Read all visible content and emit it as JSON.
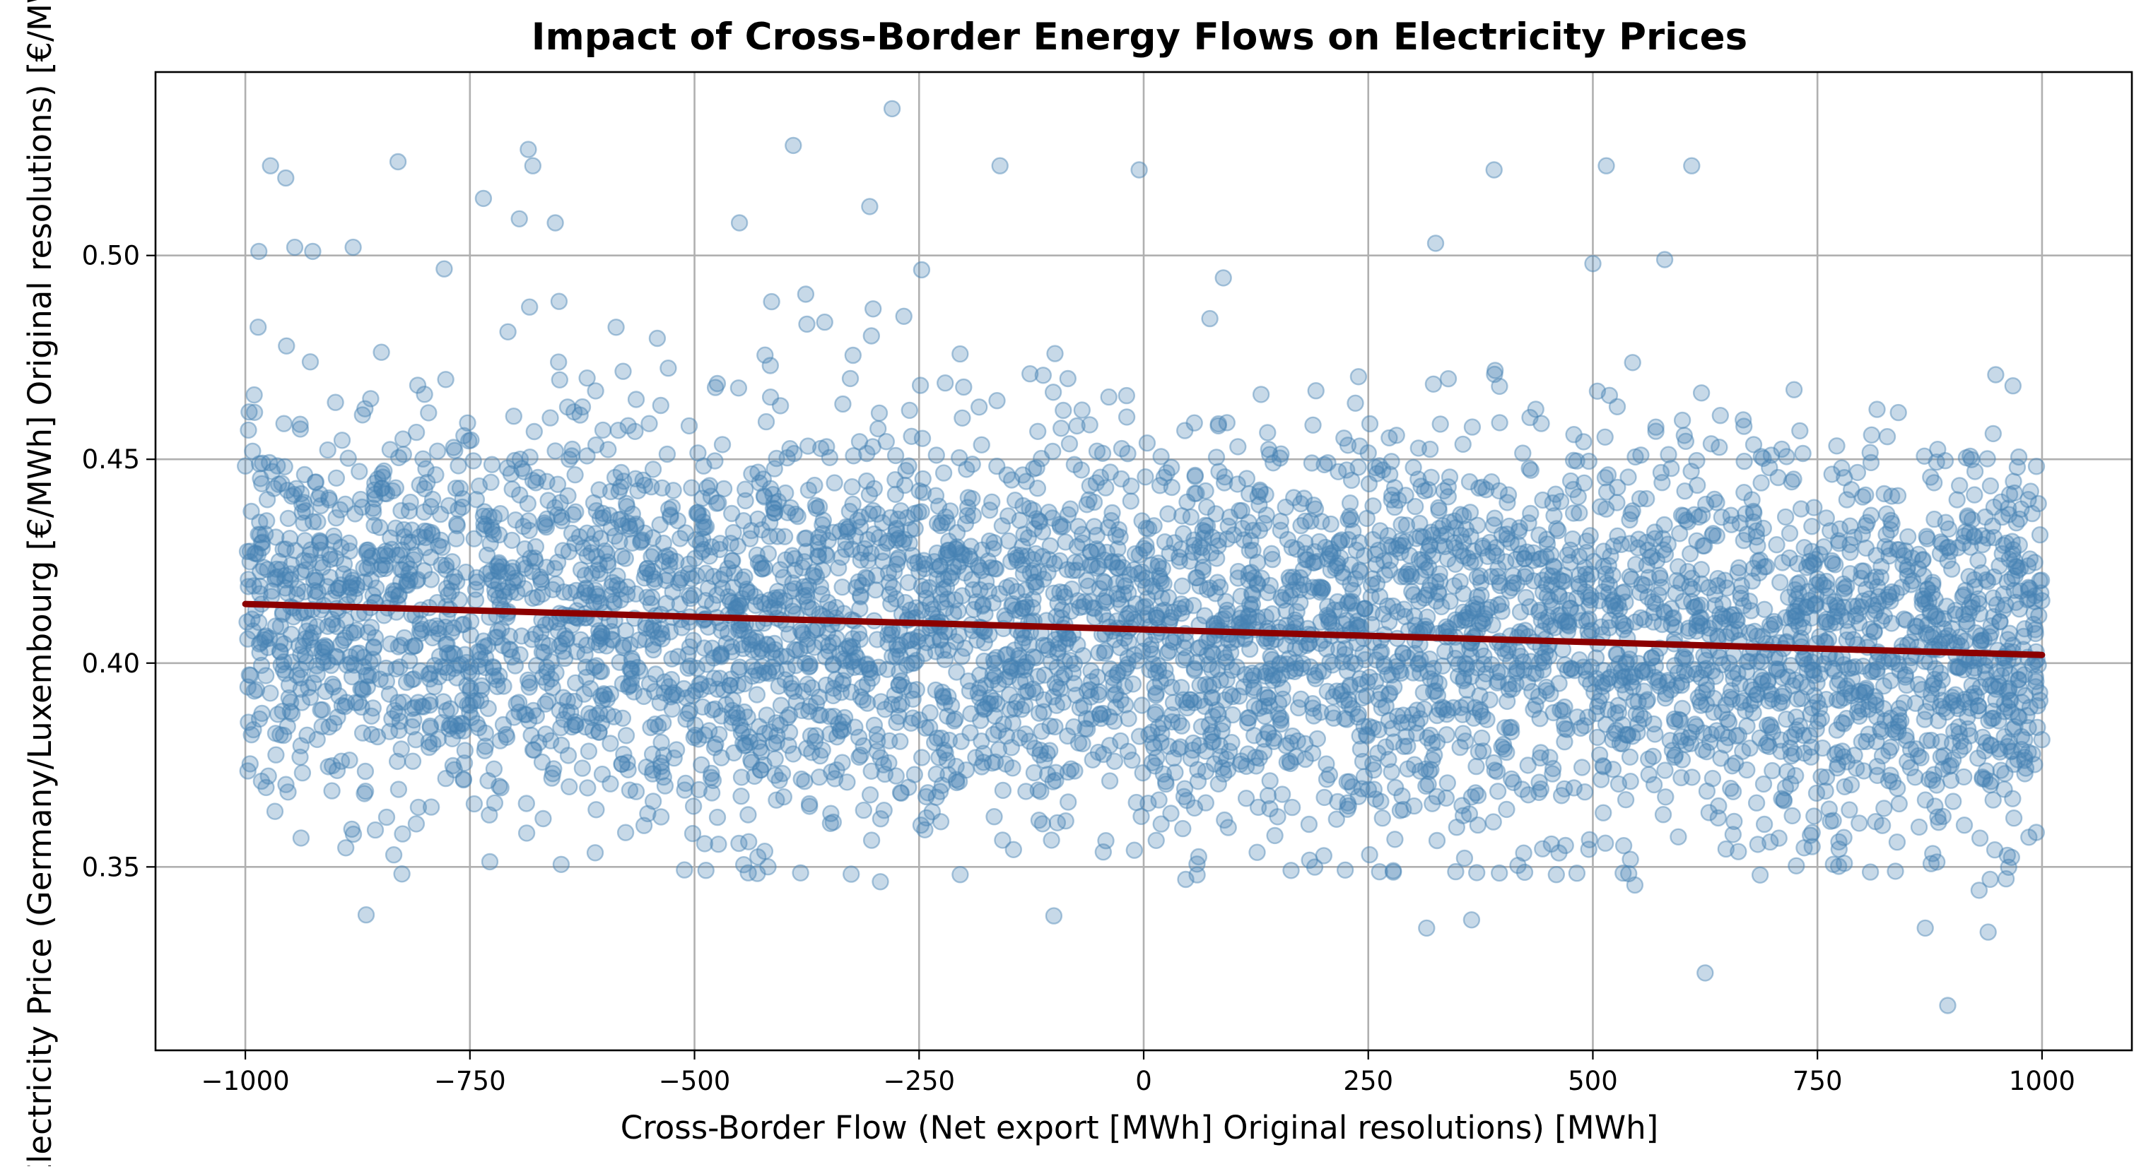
{
  "chart_data": {
    "type": "scatter",
    "title": "Impact of Cross-Border Energy Flows on Electricity Prices",
    "xlabel": "Cross-Border Flow (Net export [MWh] Original resolutions) [MWh]",
    "ylabel": "Electricity Price (Germany/Luxembourg [€/MWh] Original resolutions) [€/MWh]",
    "xlim": [
      -1100,
      1100
    ],
    "ylim": [
      0.305,
      0.545
    ],
    "xticks": [
      -1000,
      -750,
      -500,
      -250,
      0,
      250,
      500,
      750,
      1000
    ],
    "xtick_labels": [
      "−1000",
      "−750",
      "−500",
      "−250",
      "0",
      "250",
      "500",
      "750",
      "1000"
    ],
    "yticks": [
      0.35,
      0.4,
      0.45,
      0.5
    ],
    "ytick_labels": [
      "0.35",
      "0.40",
      "0.45",
      "0.50"
    ],
    "grid": true,
    "point_color": "#4682b4",
    "point_alpha": 0.3,
    "trend_color": "#8b0000",
    "point_cloud": {
      "count": 5000,
      "x_range": [
        -1000,
        1000
      ],
      "center_price_at_x_min": 0.414,
      "center_price_at_x_max": 0.402,
      "spread": 0.025,
      "price_floor": 0.348
    },
    "points_highlight": [
      {
        "x": -972,
        "y": 0.522
      },
      {
        "x": -955,
        "y": 0.519
      },
      {
        "x": -830,
        "y": 0.523
      },
      {
        "x": -685,
        "y": 0.526
      },
      {
        "x": -680,
        "y": 0.522
      },
      {
        "x": -390,
        "y": 0.527
      },
      {
        "x": -280,
        "y": 0.536
      },
      {
        "x": -160,
        "y": 0.522
      },
      {
        "x": -5,
        "y": 0.521
      },
      {
        "x": 390,
        "y": 0.521
      },
      {
        "x": 515,
        "y": 0.522
      },
      {
        "x": 610,
        "y": 0.522
      },
      {
        "x": 895,
        "y": 0.316
      },
      {
        "x": 625,
        "y": 0.324
      },
      {
        "x": 940,
        "y": 0.334
      },
      {
        "x": -100,
        "y": 0.338
      },
      {
        "x": 315,
        "y": 0.335
      },
      {
        "x": 365,
        "y": 0.337
      },
      {
        "x": 870,
        "y": 0.335
      },
      {
        "x": -985,
        "y": 0.501
      },
      {
        "x": -945,
        "y": 0.502
      },
      {
        "x": -925,
        "y": 0.501
      },
      {
        "x": -880,
        "y": 0.502
      },
      {
        "x": -735,
        "y": 0.514
      },
      {
        "x": -695,
        "y": 0.509
      },
      {
        "x": -655,
        "y": 0.508
      },
      {
        "x": -305,
        "y": 0.512
      },
      {
        "x": -450,
        "y": 0.508
      },
      {
        "x": 325,
        "y": 0.503
      },
      {
        "x": 500,
        "y": 0.498
      },
      {
        "x": 580,
        "y": 0.499
      }
    ],
    "series": [
      {
        "type": "trend_line",
        "x": [
          -1000,
          1000
        ],
        "y": [
          0.4145,
          0.402
        ]
      }
    ]
  }
}
